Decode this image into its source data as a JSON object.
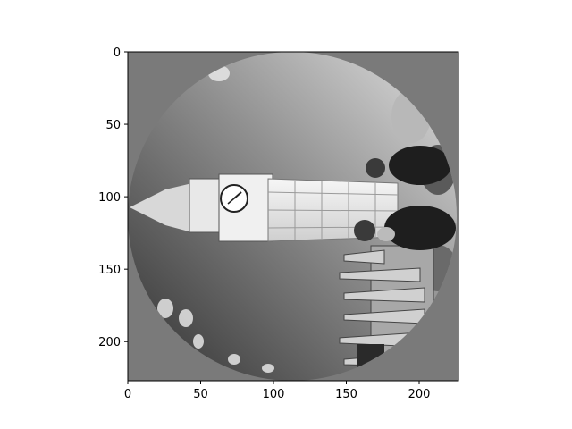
{
  "figure": {
    "description_colors": {
      "background": "#7a7a7a",
      "sky_light": "#d8d8d8",
      "sky_dark": "#3a3a3a"
    }
  },
  "axes": {
    "x": {
      "min": 0,
      "max": 227,
      "ticks": [
        {
          "value": 0,
          "label": "0"
        },
        {
          "value": 50,
          "label": "50"
        },
        {
          "value": 100,
          "label": "100"
        },
        {
          "value": 150,
          "label": "150"
        },
        {
          "value": 200,
          "label": "200"
        }
      ]
    },
    "y": {
      "min": 0,
      "max": 227,
      "inverted": true,
      "ticks": [
        {
          "value": 0,
          "label": "0"
        },
        {
          "value": 50,
          "label": "50"
        },
        {
          "value": 100,
          "label": "100"
        },
        {
          "value": 150,
          "label": "150"
        },
        {
          "value": 200,
          "label": "200"
        }
      ]
    }
  },
  "image": {
    "subject_icon": "rotated-clock-tower-photo",
    "mask": "circle"
  }
}
